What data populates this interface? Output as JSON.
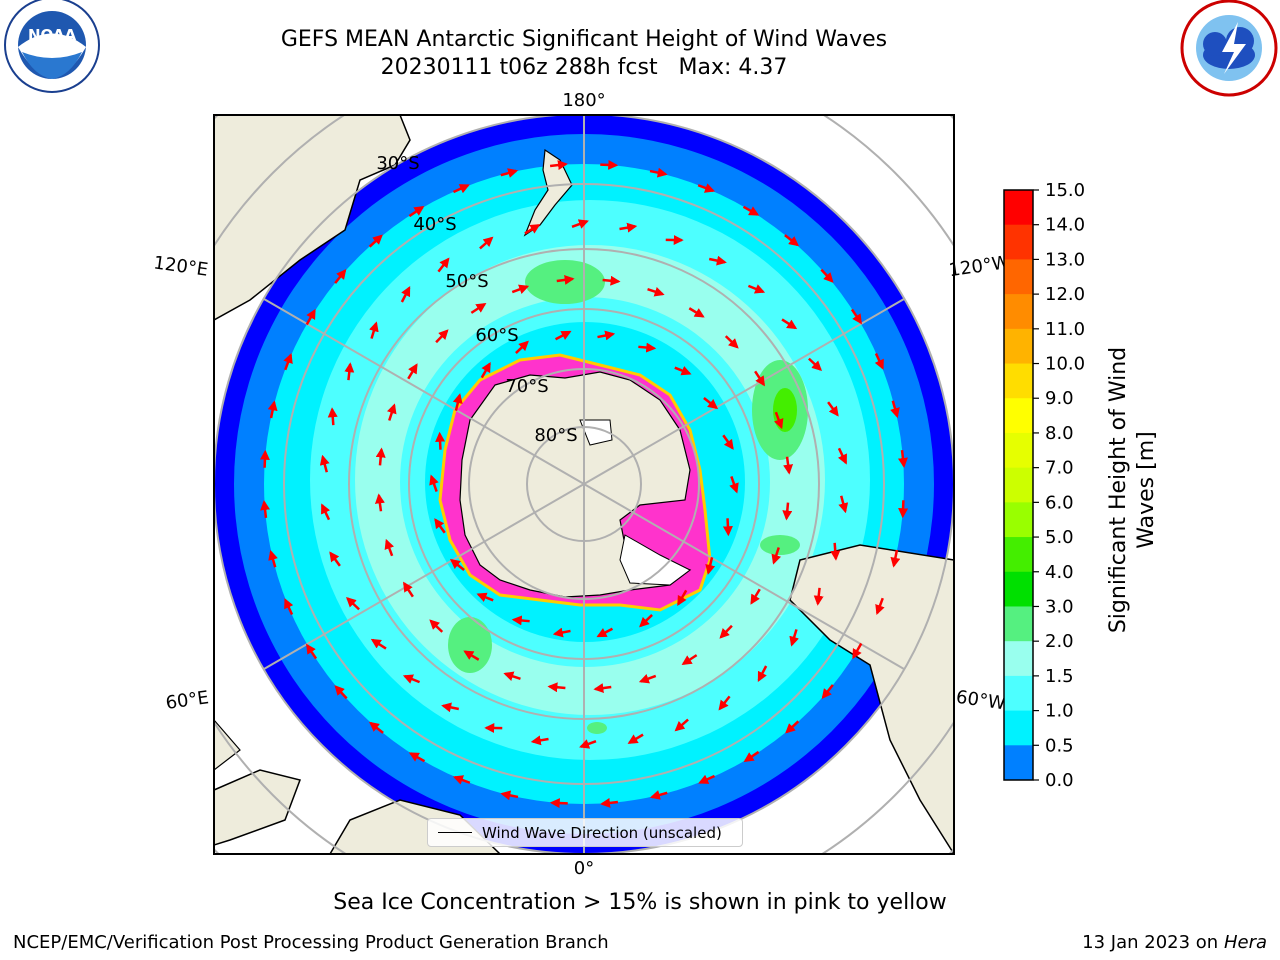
{
  "title": {
    "line1": "GEFS MEAN Antarctic Significant Height of Wind Waves",
    "line2": "20230111 t06z 288h fcst   Max: 4.37"
  },
  "logos": {
    "left": "noara-logo",
    "right": "national-weather-service-logo"
  },
  "map": {
    "projection": "south-polar-stereographic",
    "lon_labels": [
      "180°",
      "120°E",
      "120°W",
      "60°E",
      "60°W",
      "0°"
    ],
    "lat_labels": [
      "30°S",
      "40°S",
      "50°S",
      "60°S",
      "70°S",
      "80°S"
    ],
    "legend_label": "Wind Wave Direction (unscaled)",
    "colors": {
      "land": "#eeecdc",
      "ocean_low": "#0000ff",
      "arrow": "#ff0000",
      "sea_ice": "#ff33cc"
    }
  },
  "colorbar": {
    "title": "Significant Height of Wind Waves [m]",
    "ticks": [
      "15.0",
      "14.0",
      "13.0",
      "12.0",
      "11.0",
      "10.0",
      "9.0",
      "8.0",
      "7.0",
      "6.0",
      "5.0",
      "4.0",
      "3.0",
      "2.0",
      "1.5",
      "1.0",
      "0.5",
      "0.0"
    ],
    "colors": [
      "#ff0000",
      "#ff3300",
      "#ff6600",
      "#ff8c00",
      "#ffb300",
      "#ffdd00",
      "#ffff00",
      "#e6ff00",
      "#ccff00",
      "#99ff00",
      "#44ee00",
      "#00e000",
      "#55f080",
      "#99ffee",
      "#4dffff",
      "#00f2ff",
      "#0080ff",
      "#0000ff"
    ]
  },
  "caption": "Sea Ice Concentration > 15% is shown in pink to yellow",
  "footer": {
    "left": "NCEP/EMC/Verification Post Processing Product Generation Branch",
    "right_prefix": "13 Jan 2023 on ",
    "right_host": "Hera"
  }
}
